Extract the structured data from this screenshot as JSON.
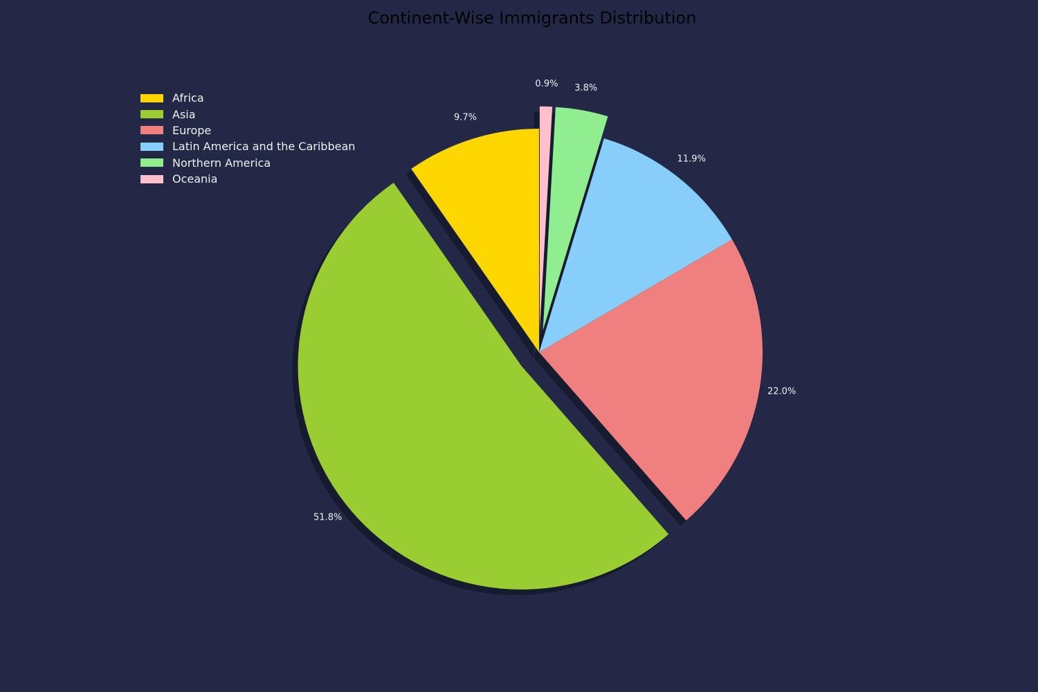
{
  "chart_data": {
    "type": "pie",
    "title": "Continent-Wise Immigrants Distribution",
    "categories": [
      "Africa",
      "Asia",
      "Europe",
      "Latin America and the Caribbean",
      "Northern America",
      "Oceania"
    ],
    "values": [
      9.7,
      51.8,
      22.0,
      11.9,
      3.8,
      0.9
    ],
    "labels": [
      "9.7%",
      "51.8%",
      "22.0%",
      "11.9%",
      "3.8%",
      "0.9%"
    ],
    "colors": [
      "#FFD700",
      "#9ACD32",
      "#F08080",
      "#87CEFA",
      "#90EE90",
      "#FFC0CB"
    ],
    "explode": [
      0,
      0.1,
      0,
      0,
      0.1,
      0.1
    ],
    "start_angle": 90,
    "legend_position": "upper-left",
    "shadow": true
  }
}
